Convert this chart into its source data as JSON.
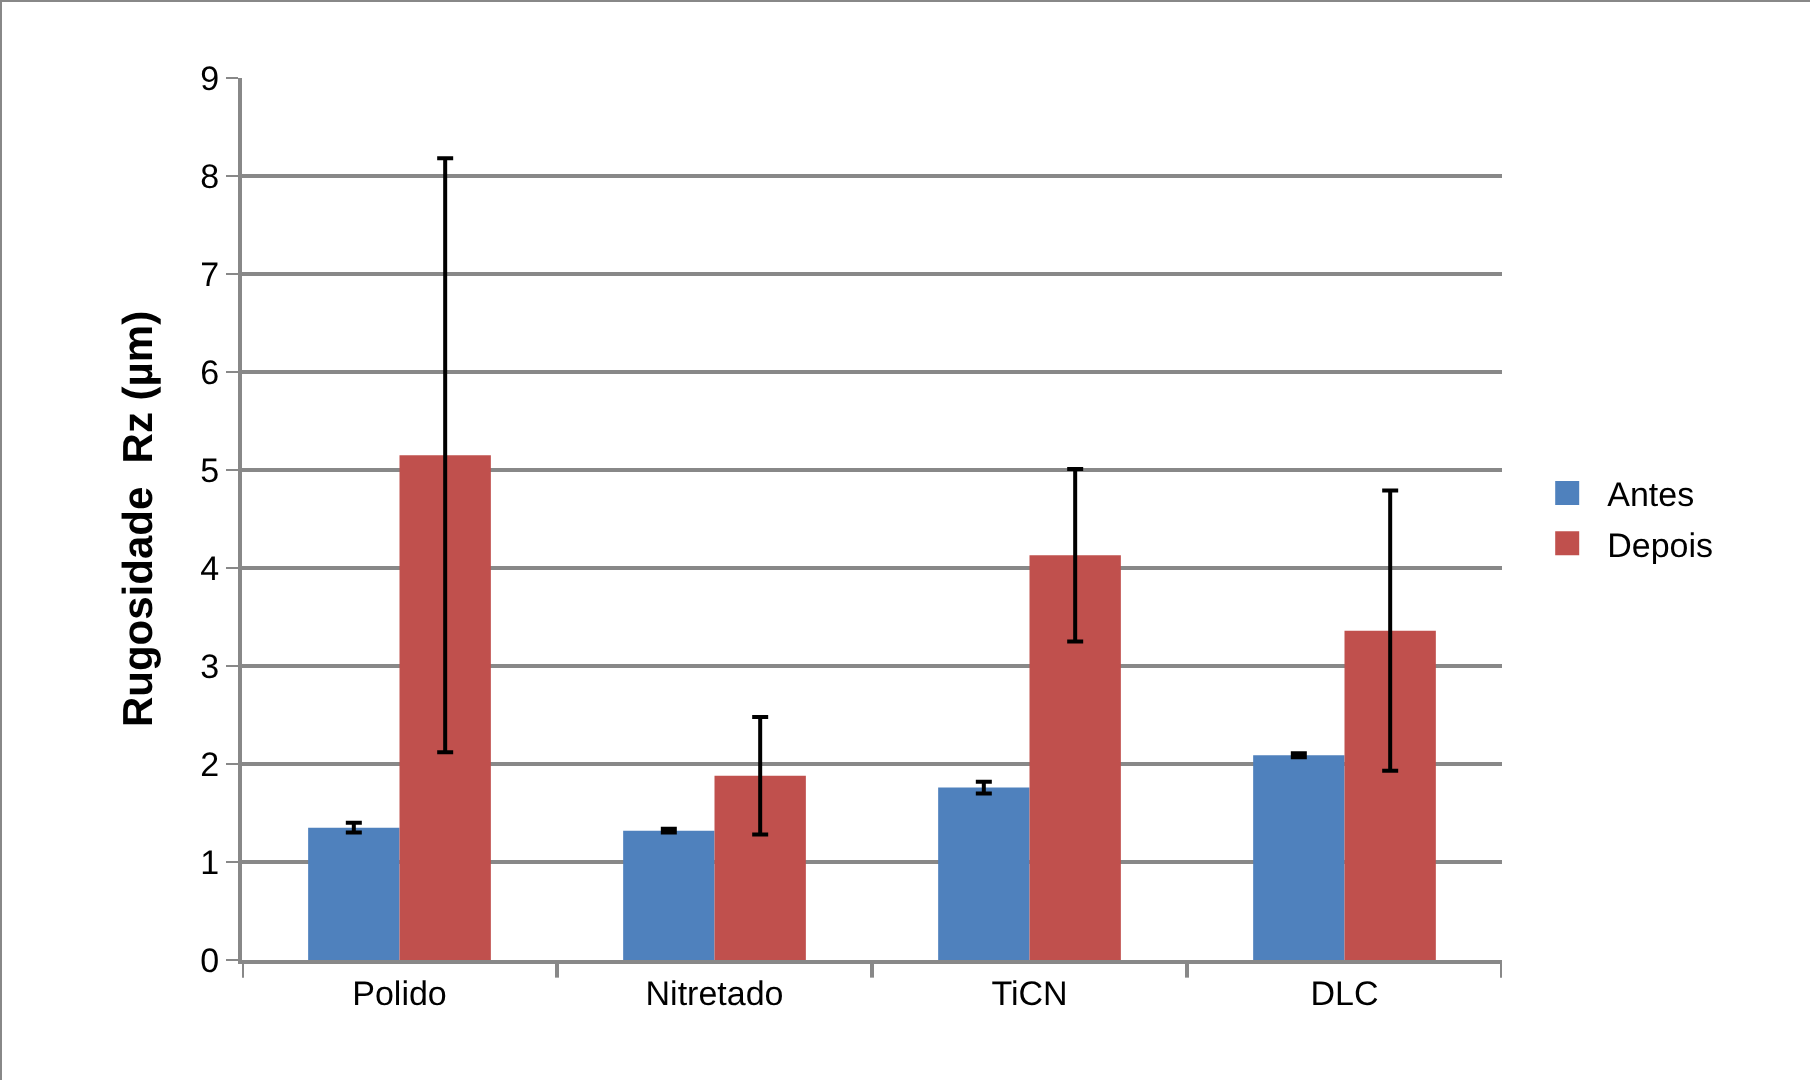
{
  "chart_data": {
    "type": "bar",
    "ylabel": "Rugosidade  Rz (µm)",
    "categories": [
      "Polido",
      "Nitretado",
      "TiCN",
      "DLC"
    ],
    "series": [
      {
        "name": "Antes",
        "color": "#4f81bd",
        "values": [
          1.35,
          1.32,
          1.76,
          2.09
        ],
        "errors": [
          0.05,
          0.02,
          0.06,
          0.02
        ]
      },
      {
        "name": "Depois",
        "color": "#c0504d",
        "values": [
          5.15,
          1.88,
          4.13,
          3.36
        ],
        "errors": [
          3.03,
          0.6,
          0.88,
          1.43
        ]
      }
    ],
    "ylim": [
      0,
      9
    ],
    "yticks": [
      0,
      1,
      2,
      3,
      4,
      5,
      6,
      7,
      8,
      9
    ],
    "grid": "y",
    "legend": "right"
  }
}
